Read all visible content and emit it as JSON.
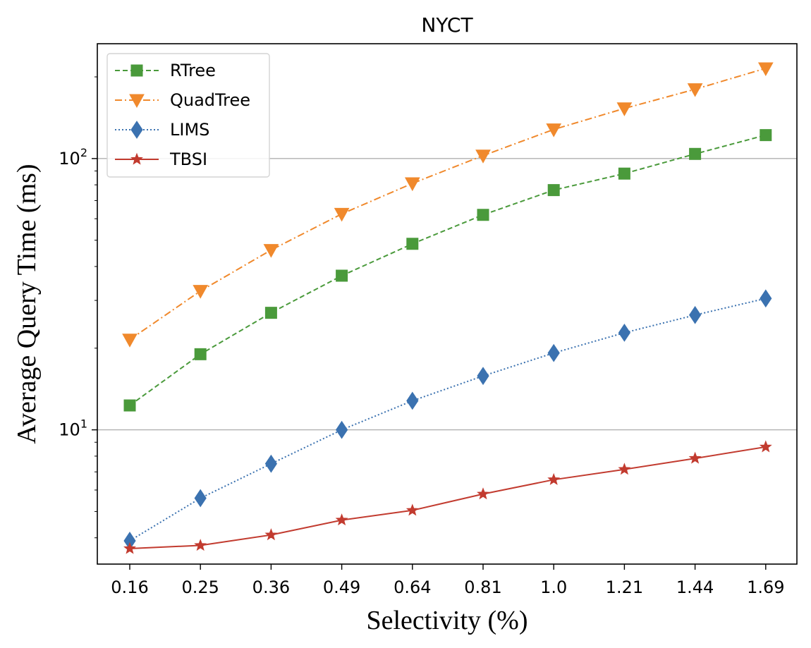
{
  "chart_data": {
    "type": "line",
    "title": "NYCT",
    "xlabel": "Selectivity (%)",
    "ylabel": "Average Query Time (ms)",
    "yscale": "log",
    "ylim": [
      3.2,
      265
    ],
    "grid": "y-major",
    "legend_position": "top-left",
    "categories": [
      "0.16",
      "0.25",
      "0.36",
      "0.49",
      "0.64",
      "0.81",
      "1.0",
      "1.21",
      "1.44",
      "1.69"
    ],
    "y_ticks": [
      {
        "value": 10,
        "base": "10",
        "exp": "1"
      },
      {
        "value": 100,
        "base": "10",
        "exp": "2"
      }
    ],
    "series": [
      {
        "name": "RTree",
        "color": "#4a9a3b",
        "marker": "square",
        "line": "dashed",
        "values": [
          12.3,
          19.0,
          27.0,
          37.0,
          48.5,
          62.0,
          76.5,
          88.0,
          104.0,
          122.0
        ]
      },
      {
        "name": "QuadTree",
        "color": "#f0892c",
        "marker": "triangle-down",
        "line": "dashdot",
        "values": [
          21.5,
          32.5,
          46.0,
          62.5,
          81.0,
          102.5,
          128.0,
          153.0,
          180.0,
          215.0
        ]
      },
      {
        "name": "LIMS",
        "color": "#3b72b0",
        "marker": "thin-diamond",
        "line": "dotted",
        "values": [
          3.9,
          5.6,
          7.5,
          10.0,
          12.8,
          15.8,
          19.2,
          22.8,
          26.5,
          30.5
        ]
      },
      {
        "name": "TBSI",
        "color": "#c23b2f",
        "marker": "star",
        "line": "solid",
        "values": [
          3.65,
          3.75,
          4.1,
          4.65,
          5.05,
          5.8,
          6.55,
          7.15,
          7.85,
          8.65
        ]
      }
    ]
  }
}
